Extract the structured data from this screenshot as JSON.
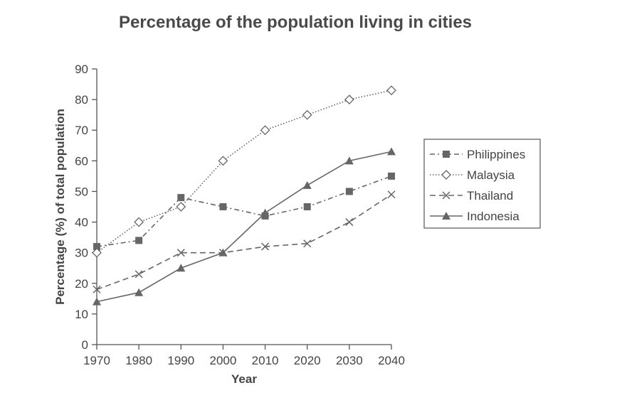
{
  "chart_data": {
    "type": "line",
    "title": "Percentage of the population living in cities",
    "xlabel": "Year",
    "ylabel": "Percentage (%) of total population",
    "x": [
      "1970",
      "1980",
      "1990",
      "2000",
      "2010",
      "2020",
      "2030",
      "2040"
    ],
    "ylim": [
      0,
      90
    ],
    "yticks": [
      "0",
      "10",
      "20",
      "30",
      "40",
      "50",
      "60",
      "70",
      "80",
      "90"
    ],
    "grid": false,
    "legend_position": "right",
    "series": [
      {
        "name": "Philippines",
        "values": [
          32,
          34,
          48,
          45,
          42,
          45,
          50,
          55
        ],
        "marker": "square",
        "dash": "dash-dot",
        "color": "#666666"
      },
      {
        "name": "Malaysia",
        "values": [
          30,
          40,
          45,
          60,
          70,
          75,
          80,
          83
        ],
        "marker": "diamond",
        "dash": "dotted",
        "color": "#666666"
      },
      {
        "name": "Thailand",
        "values": [
          18,
          23,
          30,
          30,
          32,
          33,
          40,
          49
        ],
        "marker": "x",
        "dash": "dashed",
        "color": "#666666"
      },
      {
        "name": "Indonesia",
        "values": [
          14,
          17,
          25,
          30,
          43,
          52,
          60,
          63
        ],
        "marker": "triangle",
        "dash": "solid",
        "color": "#666666"
      }
    ]
  }
}
